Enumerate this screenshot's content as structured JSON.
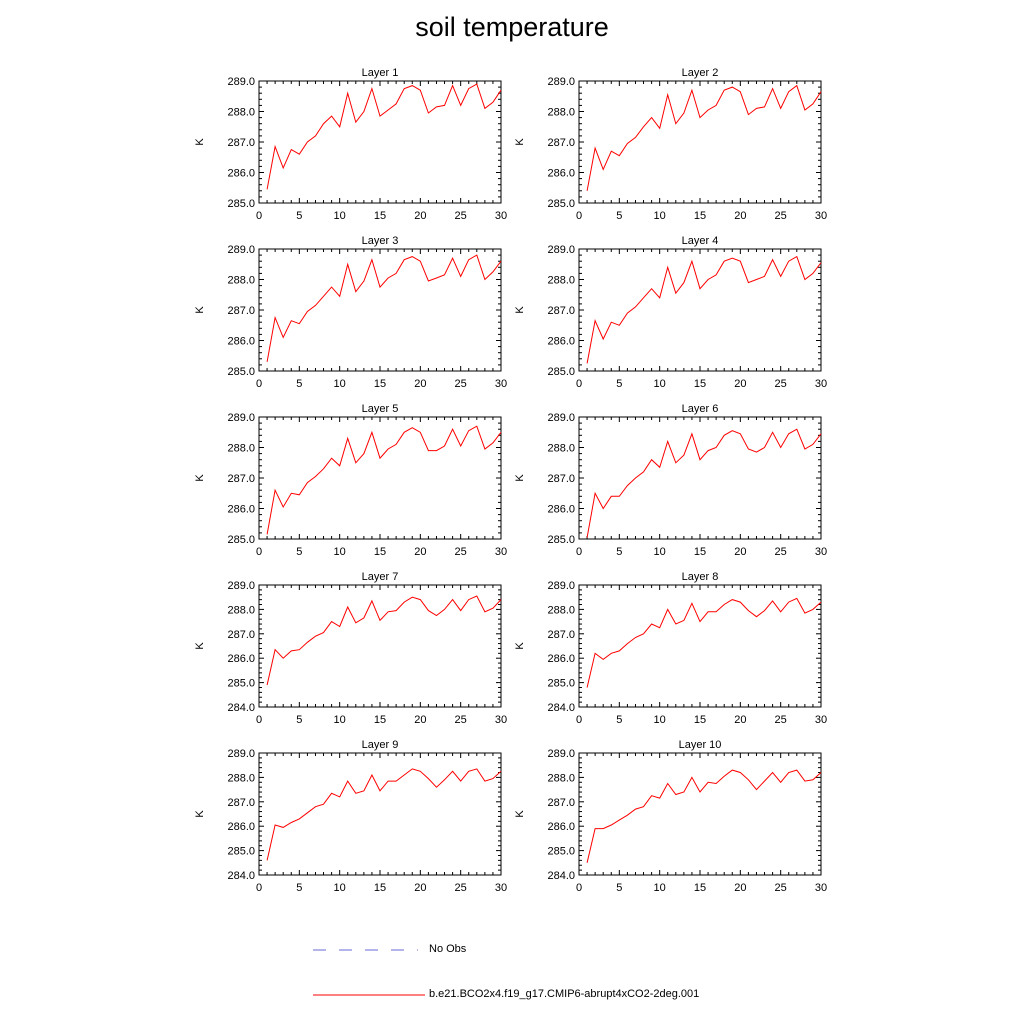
{
  "title": "soil temperature",
  "legend": {
    "items": [
      {
        "label": "No Obs",
        "color": "#6a6ad8",
        "style": "dashed"
      },
      {
        "label": "b.e21.BCO2x4.f19_g17.CMIP6-abrupt4xCO2-2deg.001",
        "color": "#ff0000",
        "style": "solid"
      }
    ]
  },
  "chart_data": [
    {
      "type": "line",
      "title": "Layer 1",
      "ylabel": "K",
      "xlim": [
        0,
        30
      ],
      "ylim": [
        285,
        289
      ],
      "xticks": [
        0,
        5,
        10,
        15,
        20,
        25,
        30
      ],
      "yticks": [
        "285.0",
        "286.0",
        "287.0",
        "288.0",
        "289.0"
      ],
      "x": [
        1,
        2,
        3,
        4,
        5,
        6,
        7,
        8,
        9,
        10,
        11,
        12,
        13,
        14,
        15,
        16,
        17,
        18,
        19,
        20,
        21,
        22,
        23,
        24,
        25,
        26,
        27,
        28,
        29,
        30
      ],
      "series": [
        {
          "color": "#ff0000",
          "values": [
            285.45,
            286.85,
            286.15,
            286.75,
            286.6,
            287.0,
            287.2,
            287.6,
            287.85,
            287.5,
            288.6,
            287.65,
            288.0,
            288.75,
            287.85,
            288.05,
            288.25,
            288.75,
            288.85,
            288.7,
            287.95,
            288.15,
            288.2,
            288.85,
            288.2,
            288.75,
            288.9,
            288.1,
            288.3,
            288.7
          ]
        }
      ]
    },
    {
      "type": "line",
      "title": "Layer 2",
      "ylabel": "K",
      "xlim": [
        0,
        30
      ],
      "ylim": [
        285,
        289
      ],
      "xticks": [
        0,
        5,
        10,
        15,
        20,
        25,
        30
      ],
      "yticks": [
        "285.0",
        "286.0",
        "287.0",
        "288.0",
        "289.0"
      ],
      "x": [
        1,
        2,
        3,
        4,
        5,
        6,
        7,
        8,
        9,
        10,
        11,
        12,
        13,
        14,
        15,
        16,
        17,
        18,
        19,
        20,
        21,
        22,
        23,
        24,
        25,
        26,
        27,
        28,
        29,
        30
      ],
      "series": [
        {
          "color": "#ff0000",
          "values": [
            285.4,
            286.8,
            286.1,
            286.7,
            286.55,
            286.95,
            287.15,
            287.5,
            287.8,
            287.45,
            288.55,
            287.6,
            287.95,
            288.7,
            287.8,
            288.05,
            288.2,
            288.7,
            288.8,
            288.65,
            287.9,
            288.1,
            288.15,
            288.75,
            288.1,
            288.65,
            288.85,
            288.05,
            288.25,
            288.65
          ]
        }
      ]
    },
    {
      "type": "line",
      "title": "Layer 3",
      "ylabel": "K",
      "xlim": [
        0,
        30
      ],
      "ylim": [
        285,
        289
      ],
      "xticks": [
        0,
        5,
        10,
        15,
        20,
        25,
        30
      ],
      "yticks": [
        "285.0",
        "286.0",
        "287.0",
        "288.0",
        "289.0"
      ],
      "x": [
        1,
        2,
        3,
        4,
        5,
        6,
        7,
        8,
        9,
        10,
        11,
        12,
        13,
        14,
        15,
        16,
        17,
        18,
        19,
        20,
        21,
        22,
        23,
        24,
        25,
        26,
        27,
        28,
        29,
        30
      ],
      "series": [
        {
          "color": "#ff0000",
          "values": [
            285.3,
            286.75,
            286.1,
            286.65,
            286.55,
            286.95,
            287.15,
            287.45,
            287.75,
            287.45,
            288.5,
            287.6,
            287.95,
            288.65,
            287.75,
            288.05,
            288.2,
            288.65,
            288.75,
            288.6,
            287.95,
            288.05,
            288.15,
            288.7,
            288.1,
            288.65,
            288.8,
            288.0,
            288.25,
            288.6
          ]
        }
      ]
    },
    {
      "type": "line",
      "title": "Layer 4",
      "ylabel": "K",
      "xlim": [
        0,
        30
      ],
      "ylim": [
        285,
        289
      ],
      "xticks": [
        0,
        5,
        10,
        15,
        20,
        25,
        30
      ],
      "yticks": [
        "285.0",
        "286.0",
        "287.0",
        "288.0",
        "289.0"
      ],
      "x": [
        1,
        2,
        3,
        4,
        5,
        6,
        7,
        8,
        9,
        10,
        11,
        12,
        13,
        14,
        15,
        16,
        17,
        18,
        19,
        20,
        21,
        22,
        23,
        24,
        25,
        26,
        27,
        28,
        29,
        30
      ],
      "series": [
        {
          "color": "#ff0000",
          "values": [
            285.25,
            286.65,
            286.05,
            286.6,
            286.5,
            286.9,
            287.1,
            287.4,
            287.7,
            287.4,
            288.4,
            287.55,
            287.9,
            288.6,
            287.7,
            288.0,
            288.15,
            288.6,
            288.7,
            288.6,
            287.9,
            288.0,
            288.1,
            288.65,
            288.1,
            288.6,
            288.75,
            288.0,
            288.2,
            288.55
          ]
        }
      ]
    },
    {
      "type": "line",
      "title": "Layer 5",
      "ylabel": "K",
      "xlim": [
        0,
        30
      ],
      "ylim": [
        285,
        289
      ],
      "xticks": [
        0,
        5,
        10,
        15,
        20,
        25,
        30
      ],
      "yticks": [
        "285.0",
        "286.0",
        "287.0",
        "288.0",
        "289.0"
      ],
      "x": [
        1,
        2,
        3,
        4,
        5,
        6,
        7,
        8,
        9,
        10,
        11,
        12,
        13,
        14,
        15,
        16,
        17,
        18,
        19,
        20,
        21,
        22,
        23,
        24,
        25,
        26,
        27,
        28,
        29,
        30
      ],
      "series": [
        {
          "color": "#ff0000",
          "values": [
            285.15,
            286.6,
            286.05,
            286.5,
            286.45,
            286.85,
            287.05,
            287.3,
            287.65,
            287.4,
            288.3,
            287.5,
            287.8,
            288.5,
            287.65,
            287.95,
            288.1,
            288.5,
            288.65,
            288.5,
            287.9,
            287.9,
            288.05,
            288.6,
            288.05,
            288.55,
            288.7,
            287.95,
            288.15,
            288.5
          ]
        }
      ]
    },
    {
      "type": "line",
      "title": "Layer 6",
      "ylabel": "K",
      "xlim": [
        0,
        30
      ],
      "ylim": [
        285,
        289
      ],
      "xticks": [
        0,
        5,
        10,
        15,
        20,
        25,
        30
      ],
      "yticks": [
        "285.0",
        "286.0",
        "287.0",
        "288.0",
        "289.0"
      ],
      "x": [
        1,
        2,
        3,
        4,
        5,
        6,
        7,
        8,
        9,
        10,
        11,
        12,
        13,
        14,
        15,
        16,
        17,
        18,
        19,
        20,
        21,
        22,
        23,
        24,
        25,
        26,
        27,
        28,
        29,
        30
      ],
      "series": [
        {
          "color": "#ff0000",
          "values": [
            285.05,
            286.5,
            286.0,
            286.4,
            286.4,
            286.75,
            287.0,
            287.2,
            287.6,
            287.35,
            288.2,
            287.5,
            287.75,
            288.45,
            287.6,
            287.9,
            288.0,
            288.4,
            288.55,
            288.45,
            287.95,
            287.85,
            288.0,
            288.5,
            288.0,
            288.45,
            288.6,
            287.95,
            288.1,
            288.45
          ]
        }
      ]
    },
    {
      "type": "line",
      "title": "Layer 7",
      "ylabel": "K",
      "xlim": [
        0,
        30
      ],
      "ylim": [
        284,
        289
      ],
      "xticks": [
        0,
        5,
        10,
        15,
        20,
        25,
        30
      ],
      "yticks": [
        "284.0",
        "285.0",
        "286.0",
        "287.0",
        "288.0",
        "289.0"
      ],
      "x": [
        1,
        2,
        3,
        4,
        5,
        6,
        7,
        8,
        9,
        10,
        11,
        12,
        13,
        14,
        15,
        16,
        17,
        18,
        19,
        20,
        21,
        22,
        23,
        24,
        25,
        26,
        27,
        28,
        29,
        30
      ],
      "series": [
        {
          "color": "#ff0000",
          "values": [
            284.9,
            286.35,
            286.0,
            286.3,
            286.35,
            286.65,
            286.9,
            287.05,
            287.5,
            287.3,
            288.1,
            287.45,
            287.65,
            288.35,
            287.55,
            287.9,
            287.95,
            288.3,
            288.5,
            288.4,
            287.95,
            287.75,
            288.0,
            288.4,
            287.95,
            288.4,
            288.55,
            287.9,
            288.05,
            288.4
          ]
        }
      ]
    },
    {
      "type": "line",
      "title": "Layer 8",
      "ylabel": "K",
      "xlim": [
        0,
        30
      ],
      "ylim": [
        284,
        289
      ],
      "xticks": [
        0,
        5,
        10,
        15,
        20,
        25,
        30
      ],
      "yticks": [
        "284.0",
        "285.0",
        "286.0",
        "287.0",
        "288.0",
        "289.0"
      ],
      "x": [
        1,
        2,
        3,
        4,
        5,
        6,
        7,
        8,
        9,
        10,
        11,
        12,
        13,
        14,
        15,
        16,
        17,
        18,
        19,
        20,
        21,
        22,
        23,
        24,
        25,
        26,
        27,
        28,
        29,
        30
      ],
      "series": [
        {
          "color": "#ff0000",
          "values": [
            284.8,
            286.2,
            285.95,
            286.2,
            286.3,
            286.6,
            286.85,
            287.0,
            287.4,
            287.25,
            288.0,
            287.4,
            287.55,
            288.25,
            287.5,
            287.9,
            287.9,
            288.2,
            288.4,
            288.3,
            287.95,
            287.7,
            287.95,
            288.35,
            287.9,
            288.3,
            288.45,
            287.85,
            288.0,
            288.3
          ]
        }
      ]
    },
    {
      "type": "line",
      "title": "Layer 9",
      "ylabel": "K",
      "xlim": [
        0,
        30
      ],
      "ylim": [
        284,
        289
      ],
      "xticks": [
        0,
        5,
        10,
        15,
        20,
        25,
        30
      ],
      "yticks": [
        "284.0",
        "285.0",
        "286.0",
        "287.0",
        "288.0",
        "289.0"
      ],
      "x": [
        1,
        2,
        3,
        4,
        5,
        6,
        7,
        8,
        9,
        10,
        11,
        12,
        13,
        14,
        15,
        16,
        17,
        18,
        19,
        20,
        21,
        22,
        23,
        24,
        25,
        26,
        27,
        28,
        29,
        30
      ],
      "series": [
        {
          "color": "#ff0000",
          "values": [
            284.6,
            286.05,
            285.95,
            286.15,
            286.3,
            286.55,
            286.8,
            286.9,
            287.35,
            287.2,
            287.85,
            287.35,
            287.45,
            288.1,
            287.45,
            287.85,
            287.85,
            288.1,
            288.35,
            288.25,
            287.95,
            287.6,
            287.9,
            288.25,
            287.85,
            288.25,
            288.35,
            287.85,
            287.95,
            288.25
          ]
        }
      ]
    },
    {
      "type": "line",
      "title": "Layer 10",
      "ylabel": "K",
      "xlim": [
        0,
        30
      ],
      "ylim": [
        284,
        289
      ],
      "xticks": [
        0,
        5,
        10,
        15,
        20,
        25,
        30
      ],
      "yticks": [
        "284.0",
        "285.0",
        "286.0",
        "287.0",
        "288.0",
        "289.0"
      ],
      "x": [
        1,
        2,
        3,
        4,
        5,
        6,
        7,
        8,
        9,
        10,
        11,
        12,
        13,
        14,
        15,
        16,
        17,
        18,
        19,
        20,
        21,
        22,
        23,
        24,
        25,
        26,
        27,
        28,
        29,
        30
      ],
      "series": [
        {
          "color": "#ff0000",
          "values": [
            284.5,
            285.9,
            285.9,
            286.05,
            286.25,
            286.45,
            286.7,
            286.8,
            287.25,
            287.15,
            287.75,
            287.3,
            287.4,
            288.0,
            287.4,
            287.8,
            287.75,
            288.05,
            288.3,
            288.2,
            287.9,
            287.5,
            287.85,
            288.2,
            287.8,
            288.2,
            288.3,
            287.85,
            287.9,
            288.2
          ]
        }
      ]
    }
  ]
}
